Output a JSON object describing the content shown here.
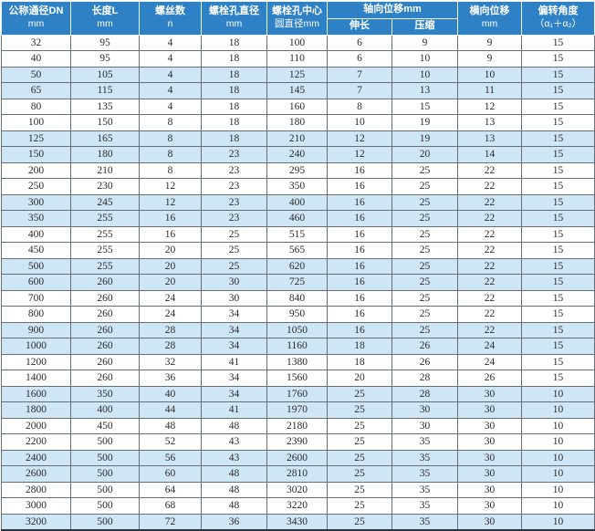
{
  "table": {
    "title": "flange-bolt-displacement-spec-table",
    "headers": {
      "dn": {
        "label": "公称通径DN",
        "unit": "mm"
      },
      "length": {
        "label": "长度L",
        "unit": "mm"
      },
      "screws": {
        "label": "螺丝数",
        "unit": "n"
      },
      "hole_d": {
        "label": "螺栓孔直径",
        "unit": "mm"
      },
      "circle_d": {
        "label": "螺栓孔中心",
        "unit": "圆直径mm"
      },
      "axial": {
        "label": "轴向位移mm",
        "sub_elongation": "伸长",
        "sub_compression": "压缩"
      },
      "lateral": {
        "label": "横向位移",
        "unit": "mm"
      },
      "angle": {
        "label": "偏转角度",
        "unit": "（α₁＋α₂）"
      }
    },
    "rows": [
      [
        "32",
        "95",
        "4",
        "18",
        "100",
        "6",
        "9",
        "9",
        "15"
      ],
      [
        "40",
        "95",
        "4",
        "18",
        "110",
        "6",
        "10",
        "9",
        "15"
      ],
      [
        "50",
        "105",
        "4",
        "18",
        "125",
        "7",
        "10",
        "10",
        "15"
      ],
      [
        "65",
        "115",
        "4",
        "18",
        "145",
        "7",
        "13",
        "11",
        "15"
      ],
      [
        "80",
        "135",
        "4",
        "18",
        "160",
        "8",
        "15",
        "12",
        "15"
      ],
      [
        "100",
        "150",
        "8",
        "18",
        "180",
        "10",
        "19",
        "13",
        "15"
      ],
      [
        "125",
        "165",
        "8",
        "18",
        "210",
        "12",
        "19",
        "13",
        "15"
      ],
      [
        "150",
        "180",
        "8",
        "23",
        "240",
        "12",
        "20",
        "14",
        "15"
      ],
      [
        "200",
        "210",
        "8",
        "23",
        "295",
        "16",
        "25",
        "22",
        "15"
      ],
      [
        "250",
        "230",
        "12",
        "23",
        "350",
        "16",
        "25",
        "22",
        "15"
      ],
      [
        "300",
        "245",
        "12",
        "23",
        "400",
        "16",
        "25",
        "22",
        "15"
      ],
      [
        "350",
        "255",
        "16",
        "23",
        "460",
        "16",
        "25",
        "22",
        "15"
      ],
      [
        "400",
        "255",
        "16",
        "25",
        "515",
        "16",
        "25",
        "22",
        "15"
      ],
      [
        "450",
        "255",
        "20",
        "25",
        "565",
        "16",
        "25",
        "22",
        "15"
      ],
      [
        "500",
        "255",
        "20",
        "25",
        "620",
        "16",
        "25",
        "22",
        "15"
      ],
      [
        "600",
        "260",
        "20",
        "30",
        "725",
        "16",
        "25",
        "22",
        "15"
      ],
      [
        "700",
        "260",
        "24",
        "30",
        "840",
        "16",
        "25",
        "22",
        "15"
      ],
      [
        "800",
        "260",
        "24",
        "34",
        "950",
        "16",
        "25",
        "22",
        "15"
      ],
      [
        "900",
        "260",
        "28",
        "34",
        "1050",
        "16",
        "25",
        "22",
        "15"
      ],
      [
        "1000",
        "260",
        "28",
        "34",
        "1160",
        "18",
        "26",
        "24",
        "15"
      ],
      [
        "1200",
        "260",
        "32",
        "41",
        "1380",
        "18",
        "26",
        "24",
        "15"
      ],
      [
        "1400",
        "260",
        "36",
        "34",
        "1560",
        "20",
        "28",
        "26",
        "15"
      ],
      [
        "1600",
        "350",
        "40",
        "34",
        "1760",
        "25",
        "28",
        "30",
        "10"
      ],
      [
        "1800",
        "400",
        "44",
        "41",
        "1970",
        "25",
        "30",
        "30",
        "10"
      ],
      [
        "2000",
        "450",
        "48",
        "48",
        "2180",
        "25",
        "30",
        "30",
        "10"
      ],
      [
        "2200",
        "500",
        "52",
        "43",
        "2390",
        "25",
        "35",
        "30",
        "10"
      ],
      [
        "2400",
        "500",
        "56",
        "43",
        "2600",
        "25",
        "35",
        "30",
        "10"
      ],
      [
        "2600",
        "500",
        "60",
        "48",
        "2810",
        "25",
        "35",
        "30",
        "10"
      ],
      [
        "2800",
        "500",
        "64",
        "48",
        "3020",
        "25",
        "35",
        "30",
        "10"
      ],
      [
        "3000",
        "500",
        "68",
        "48",
        "3220",
        "25",
        "35",
        "30",
        "10"
      ],
      [
        "3200",
        "500",
        "72",
        "36",
        "3430",
        "25",
        "35",
        "30",
        "10"
      ]
    ],
    "shading_pattern": "rows shaded light blue in pairs (rows 3-4, 7-8, 11-12, ... and last row)"
  },
  "colors": {
    "header_bg": "#2e81c4",
    "header_text": "#ffffff",
    "row_alt_bg": "#cfe6f7",
    "row_bg": "#ffffff",
    "grid_line": "#666e76",
    "body_text": "#2b2b2b"
  }
}
